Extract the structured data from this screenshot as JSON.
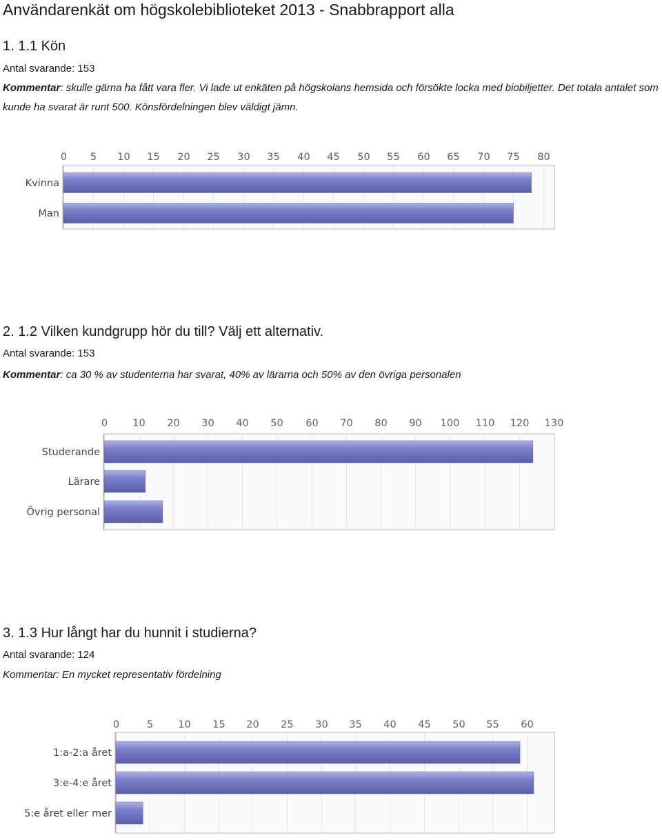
{
  "document": {
    "title": "Användarenkät om högskolebiblioteket 2013 - Snabbrapport alla"
  },
  "questions": [
    {
      "heading": "1. 1.1 Kön",
      "count": "Antal svarande: 153",
      "comment_label": "Kommentar",
      "comment_text": ": skulle gärna ha fått vara fler. Vi lade ut enkäten på högskolans hemsida och försökte locka med biobiljetter. Det totala antalet som kunde ha svarat är runt 500. Könsfördelningen blev väldigt jämn."
    },
    {
      "heading": "2. 1.2 Vilken kundgrupp hör du till? Välj ett alternativ.",
      "count": "Antal svarande: 153",
      "comment_label": "Kommentar",
      "comment_text": ": ca 30 % av studenterna har svarat, 40% av lärarna och 50% av den övriga personalen"
    },
    {
      "heading": "3. 1.3 Hur långt har du hunnit i studierna?",
      "count": "Antal svarande: 124",
      "comment_label": "Kommentar",
      "comment_text": ": En mycket representativ fördelning"
    }
  ],
  "colors": {
    "bar": "#7b80c9",
    "bar_light": "#aeb2e4",
    "bar_dark": "#5a5fa8",
    "grid": "#e6e6e6",
    "axis": "#b5b5b5",
    "plot_bg": "#fafafa"
  },
  "chart_data": [
    {
      "type": "bar",
      "orientation": "horizontal",
      "categories": [
        "Kvinna",
        "Man"
      ],
      "values": [
        78,
        75
      ],
      "xlim": [
        0,
        80
      ],
      "xticks": [
        0,
        5,
        10,
        15,
        20,
        25,
        30,
        35,
        40,
        45,
        50,
        55,
        60,
        65,
        70,
        75,
        80
      ],
      "grid": true
    },
    {
      "type": "bar",
      "orientation": "horizontal",
      "categories": [
        "Studerande",
        "Lärare",
        "Övrig personal"
      ],
      "values": [
        124,
        12,
        17
      ],
      "xlim": [
        0,
        130
      ],
      "xticks": [
        0,
        10,
        20,
        30,
        40,
        50,
        60,
        70,
        80,
        90,
        100,
        110,
        120,
        130
      ],
      "grid": true
    },
    {
      "type": "bar",
      "orientation": "horizontal",
      "categories": [
        "1:a-2:a året",
        "3:e-4:e året",
        "5:e året eller mer"
      ],
      "values": [
        59,
        61,
        4
      ],
      "xlim": [
        0,
        60
      ],
      "xticks": [
        0,
        5,
        10,
        15,
        20,
        25,
        30,
        35,
        40,
        45,
        50,
        55,
        60
      ],
      "grid": true
    }
  ]
}
